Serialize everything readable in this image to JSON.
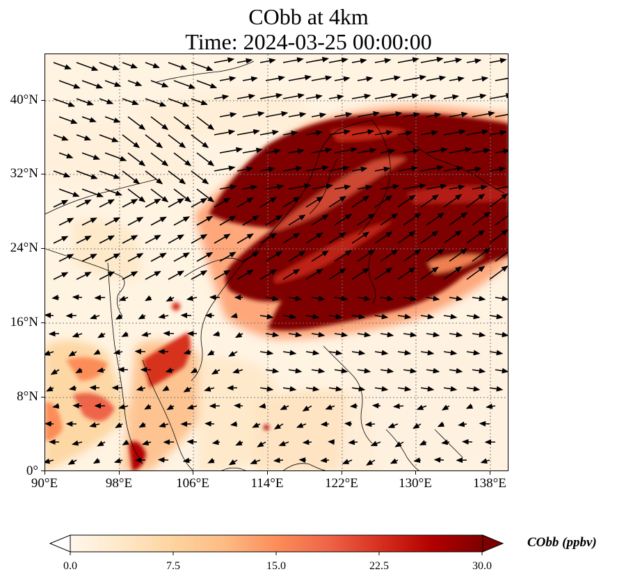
{
  "title": {
    "line1": "CObb at 4km",
    "line2": "Time: 2024-03-25 00:00:00"
  },
  "map": {
    "lon_range": [
      90,
      140
    ],
    "lat_range": [
      0,
      45
    ],
    "lon_ticks": [
      "90°E",
      "98°E",
      "106°E",
      "114°E",
      "122°E",
      "130°E",
      "138°E"
    ],
    "lat_ticks": [
      "0°",
      "8°N",
      "16°N",
      "24°N",
      "32°N",
      "40°N"
    ],
    "lon_tick_values": [
      90,
      98,
      106,
      114,
      122,
      130,
      138
    ],
    "lat_tick_values": [
      0,
      8,
      16,
      24,
      32,
      40
    ],
    "gridlines": true,
    "field_variable": "CObb",
    "vector_overlay": "wind"
  },
  "colorbar": {
    "label": "CObb (ppbv)",
    "min": 0.0,
    "max": 30.0,
    "ticks": [
      "0.0",
      "7.5",
      "15.0",
      "22.5",
      "30.0"
    ],
    "tick_values": [
      0.0,
      7.5,
      15.0,
      22.5,
      30.0
    ],
    "extend": "both",
    "colormap": "OrRd",
    "colors": [
      "#fff7ec",
      "#fee8c8",
      "#fdd49e",
      "#fdbb84",
      "#fc8d59",
      "#ef6548",
      "#d7301f",
      "#b30000",
      "#7f0000"
    ]
  }
}
